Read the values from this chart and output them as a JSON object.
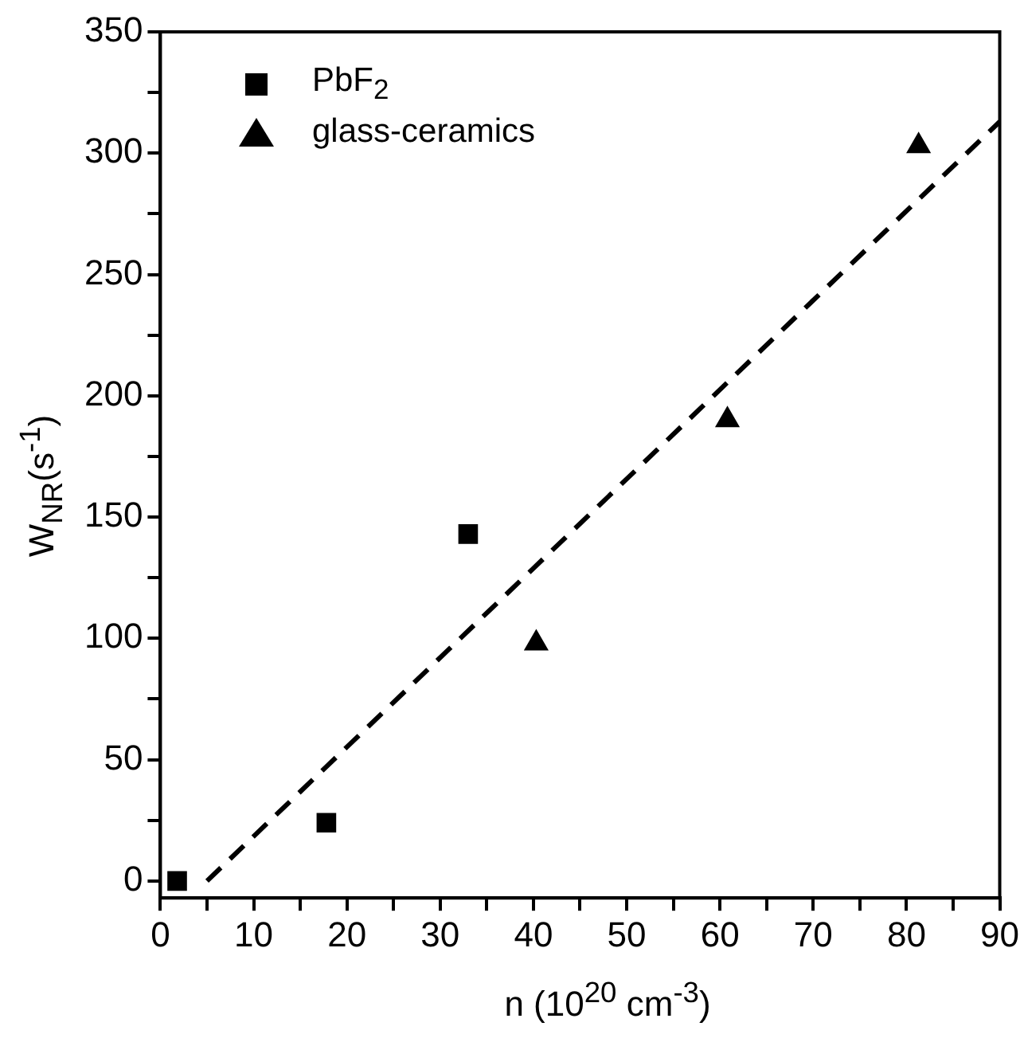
{
  "chart_data": {
    "type": "scatter",
    "xlabel": "n (10$^{20}$ cm$^{-3}$)",
    "ylabel": "W$_{NR}$(s$^{-1}$)",
    "xlim": [
      0,
      90
    ],
    "ylim": [
      -7,
      350
    ],
    "xticks": [
      0,
      {
        "value": 5,
        "label": null
      },
      10,
      {
        "value": 15,
        "label": null
      },
      20,
      {
        "value": 25,
        "label": null
      },
      30,
      {
        "value": 35,
        "label": null
      },
      40,
      {
        "value": 45,
        "label": null
      },
      50,
      {
        "value": 55,
        "label": null
      },
      60,
      {
        "value": 65,
        "label": null
      },
      70,
      {
        "value": 75,
        "label": null
      },
      80,
      {
        "value": 85,
        "label": null
      },
      90
    ],
    "yticks": [
      0,
      {
        "value": 25,
        "label": null
      },
      50,
      {
        "value": 75,
        "label": null
      },
      100,
      {
        "value": 125,
        "label": null
      },
      150,
      {
        "value": 175,
        "label": null
      },
      200,
      {
        "value": 225,
        "label": null
      },
      250,
      {
        "value": 275,
        "label": null
      },
      300,
      {
        "value": 325,
        "label": null
      },
      350
    ],
    "grid": false,
    "legend": "top left",
    "series": [
      {
        "name": "PbF$_{2}$",
        "color": "#000000",
        "marker": "square",
        "x": [
          1.8,
          17.8,
          33
        ],
        "values": [
          0,
          24,
          143
        ]
      },
      {
        "name": "glass-ceramics",
        "color": "#000000",
        "marker": "triangle",
        "x": [
          40.3,
          60.8,
          81.3
        ],
        "values": [
          98,
          190,
          303
        ]
      },
      {
        "type": "line",
        "color": "#000000",
        "line_style": "dashed",
        "marker": "none",
        "x": [
          5,
          90
        ],
        "values": [
          0,
          313
        ]
      }
    ]
  }
}
